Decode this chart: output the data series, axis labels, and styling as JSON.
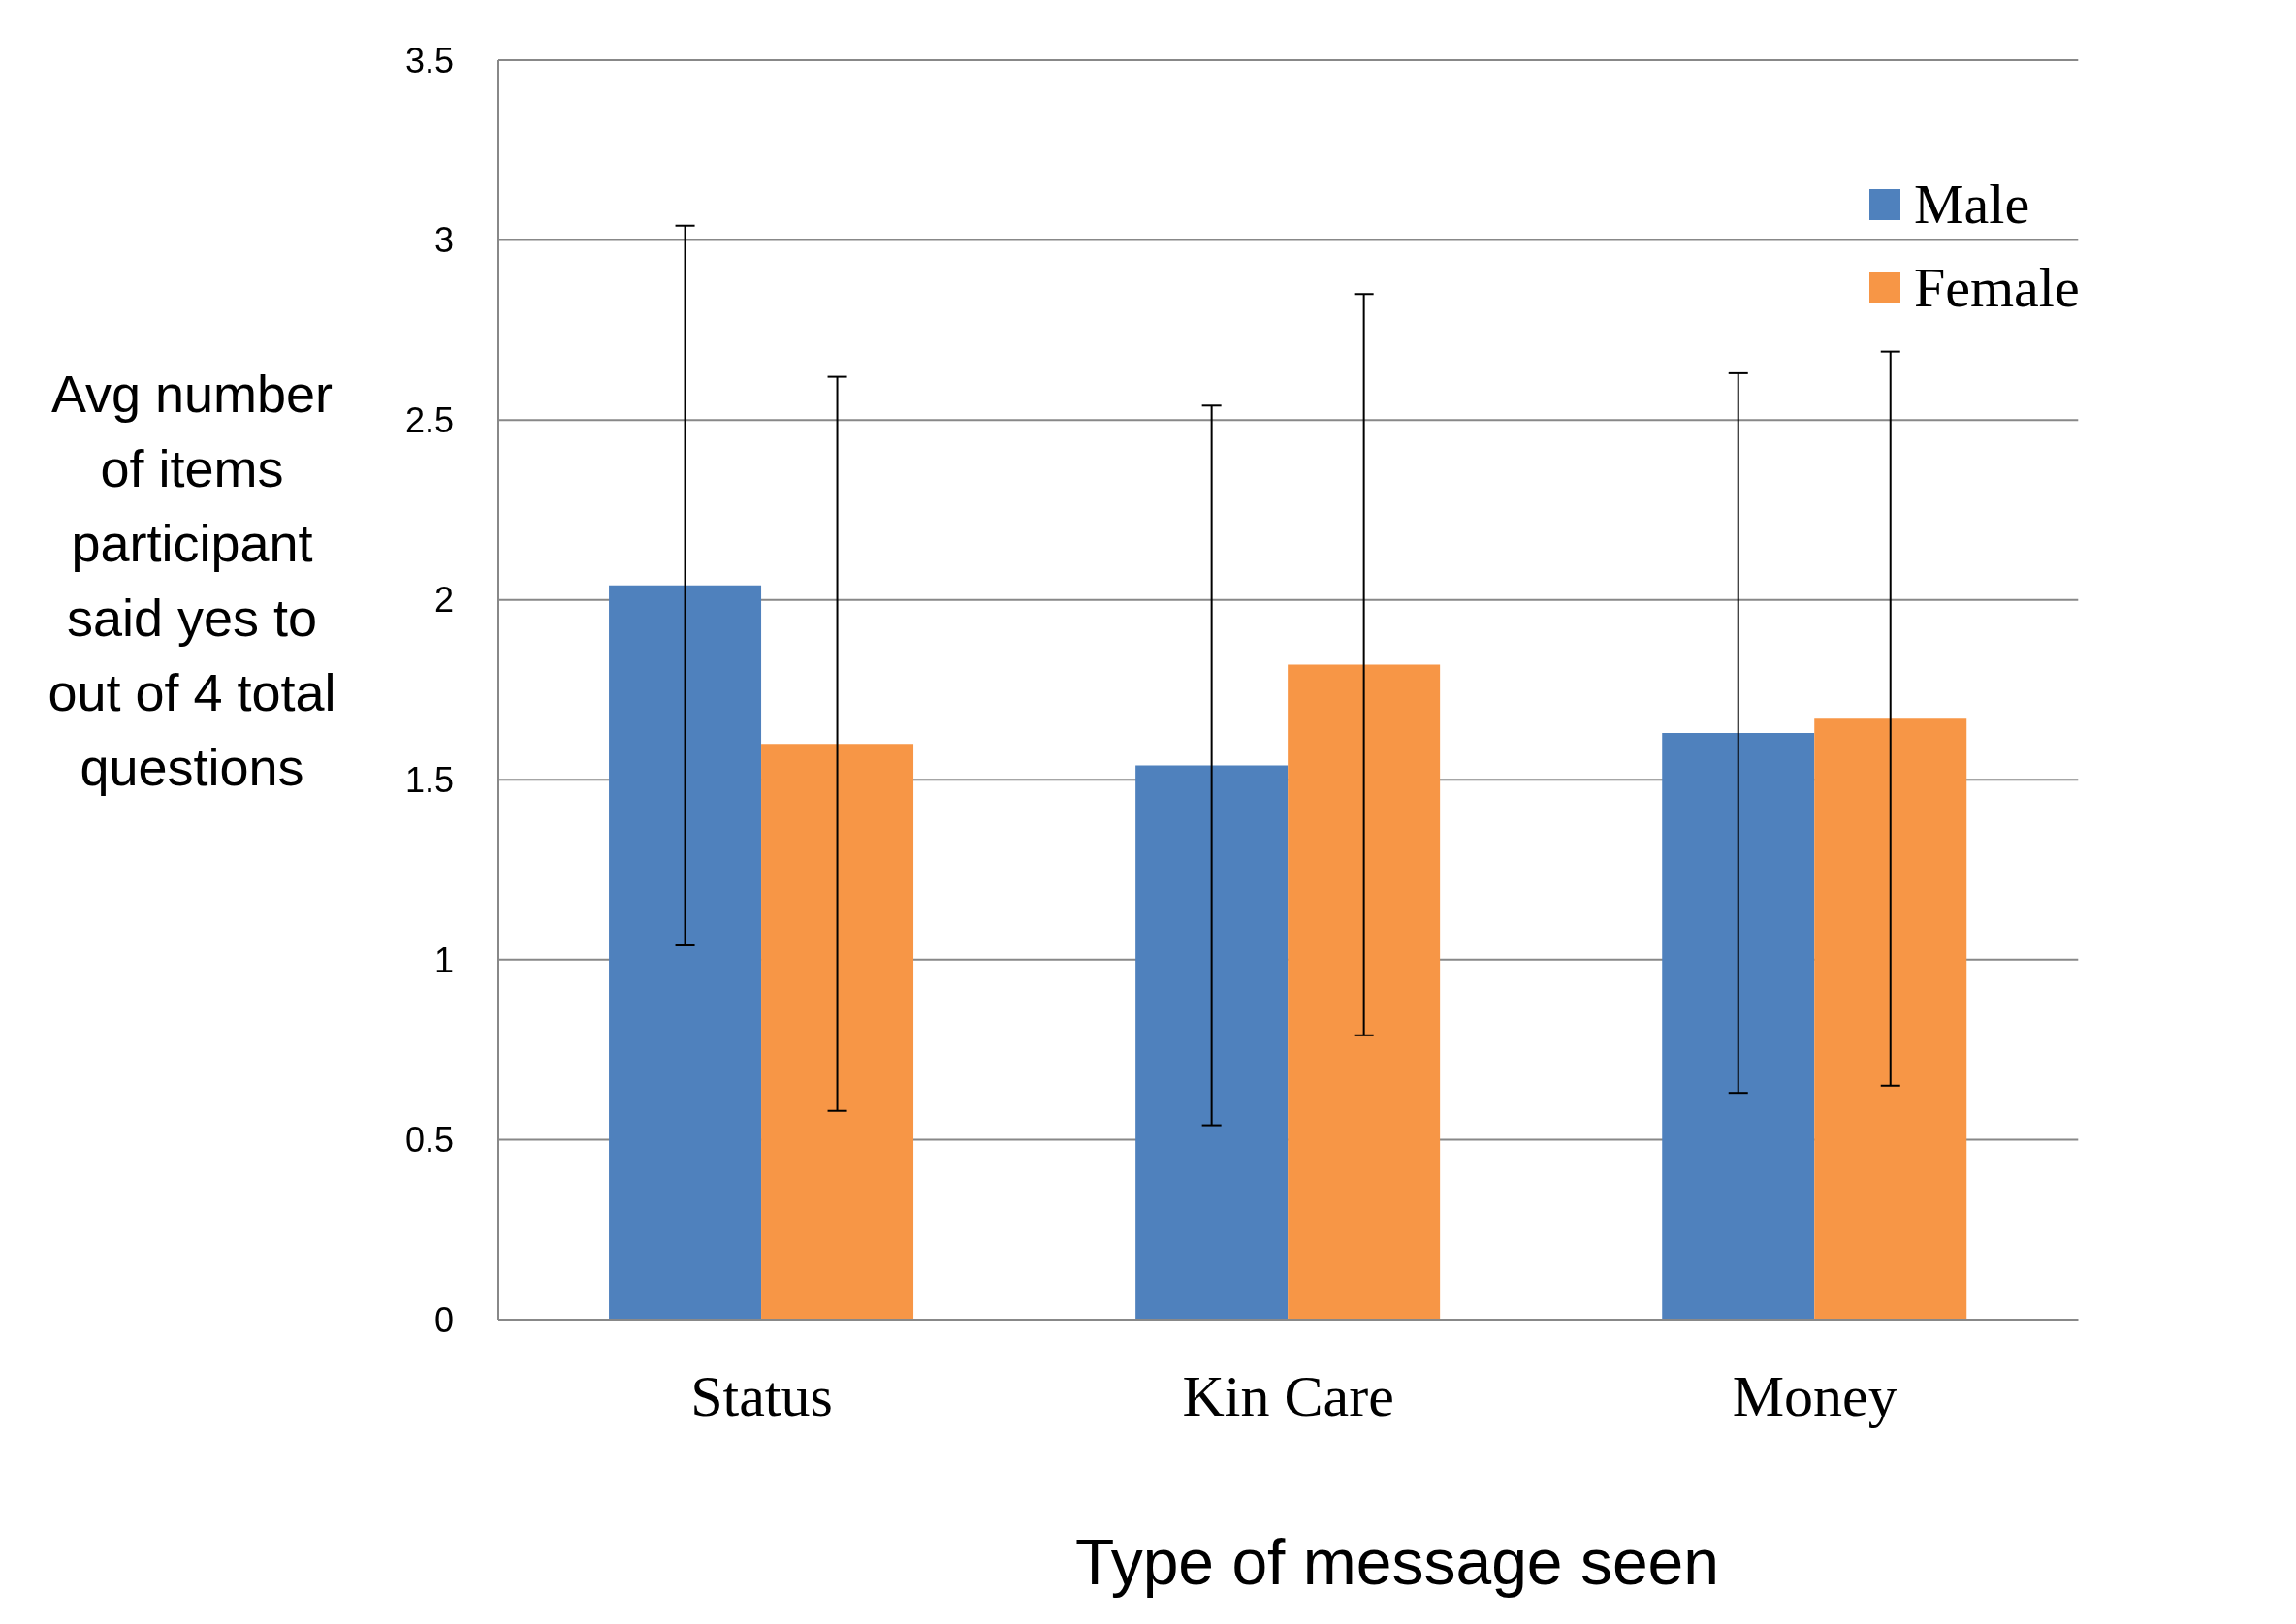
{
  "chart_data": {
    "type": "bar",
    "xlabel": "Type of message seen",
    "ylabel": "Avg number of items participant said yes to out of 4 total questions",
    "categories": [
      "Status",
      "Kin Care",
      "Money"
    ],
    "series": [
      {
        "name": "Male",
        "color": "#4f81bd",
        "values": [
          2.04,
          1.54,
          1.63
        ],
        "errors": [
          1.0,
          1.0,
          1.0
        ]
      },
      {
        "name": "Female",
        "color": "#f79646",
        "values": [
          1.6,
          1.82,
          1.67
        ],
        "errors": [
          1.02,
          1.03,
          1.02
        ]
      }
    ],
    "ylim": [
      0,
      3.5
    ],
    "yticks": [
      0,
      0.5,
      1,
      1.5,
      2,
      2.5,
      3,
      3.5
    ],
    "grid": "y",
    "legend": "top right"
  }
}
